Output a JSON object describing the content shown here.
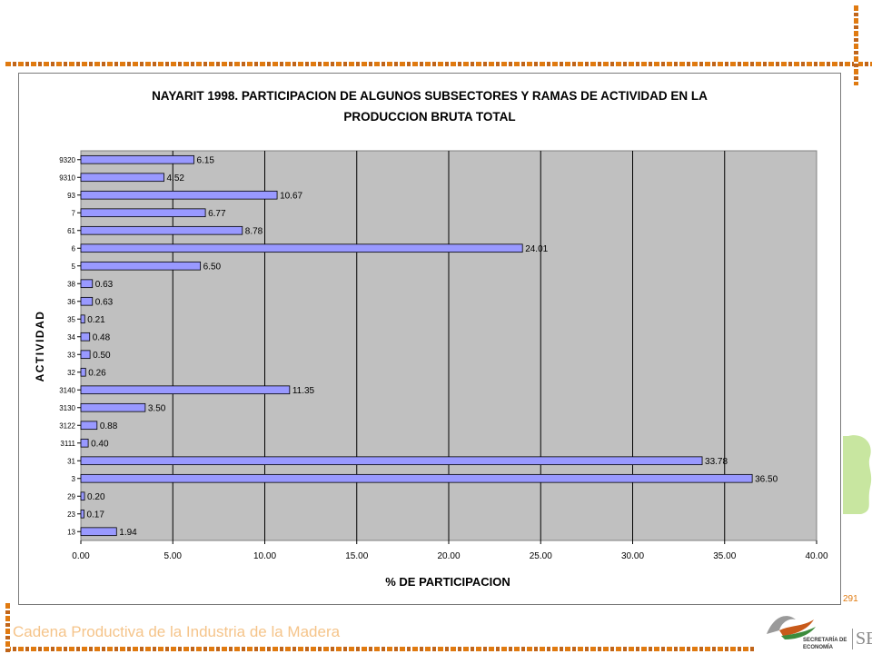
{
  "chart_data": {
    "type": "bar",
    "orientation": "horizontal",
    "title_line1": "NAYARIT 1998. PARTICIPACION DE ALGUNOS SUBSECTORES Y RAMAS DE ACTIVIDAD EN LA",
    "title_line2": "PRODUCCION BRUTA TOTAL",
    "xlabel": "% DE PARTICIPACION",
    "ylabel": "ACTIVIDAD",
    "xlim": [
      0,
      40
    ],
    "xticks": [
      "0.00",
      "5.00",
      "10.00",
      "15.00",
      "20.00",
      "25.00",
      "30.00",
      "35.00",
      "40.00"
    ],
    "grid": "vertical",
    "categories": [
      "9320",
      "9310",
      "93",
      "7",
      "61",
      "6",
      "5",
      "38",
      "36",
      "35",
      "34",
      "33",
      "32",
      "3140",
      "3130",
      "3122",
      "3111",
      "31",
      "3",
      "29",
      "23",
      "13"
    ],
    "values": [
      6.15,
      4.52,
      10.67,
      6.77,
      8.78,
      24.01,
      6.5,
      0.63,
      0.63,
      0.21,
      0.48,
      0.5,
      0.26,
      11.35,
      3.5,
      0.88,
      0.4,
      33.78,
      36.5,
      0.2,
      0.17,
      1.94
    ],
    "value_labels": [
      "6.15",
      "4.52",
      "10.67",
      "6.77",
      "8.78",
      "24.01",
      "6.50",
      "0.63",
      "0.63",
      "0.21",
      "0.48",
      "0.50",
      "0.26",
      "11.35",
      "3.50",
      "0.88",
      "0.40",
      "33.78",
      "36.50",
      "0.20",
      "0.17",
      "1.94"
    ],
    "bar_color": "#9999ff",
    "plot_background": "#c0c0c0"
  },
  "page": {
    "number": "291",
    "footer": "Cadena Productiva de la Industria de la Madera",
    "logo_line1": "SECRETARÍA DE",
    "logo_line2": "ECONOMÍA",
    "logo_mark": "SE"
  },
  "colors": {
    "accent": "#e07a10",
    "footer_text": "#f5c48a",
    "green_shape": "#c8e6a0"
  }
}
